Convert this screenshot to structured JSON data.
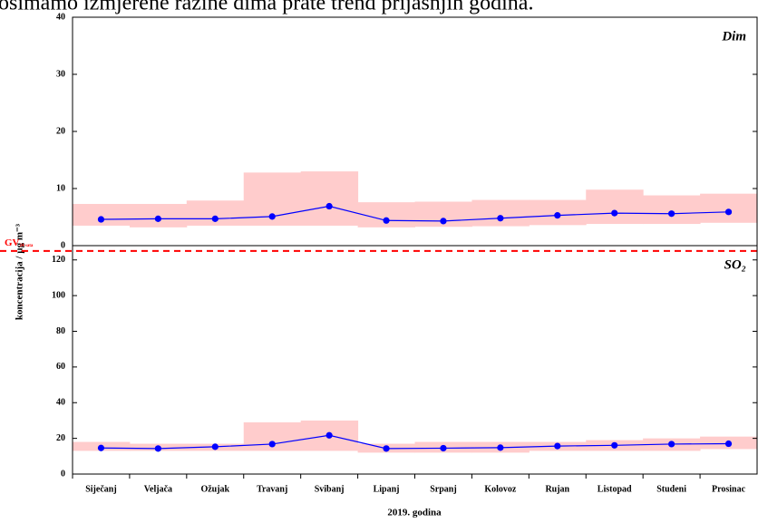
{
  "header_text": "osimamo izmjerene razine dima prate trend prijašnjih godina.",
  "y_label": "koncentracija / µg m⁻³",
  "x_label": "2019. godina",
  "chart_data": [
    {
      "type": "line",
      "label": "Dim",
      "ylim": [
        0,
        40
      ],
      "yticks": [
        0,
        10,
        20,
        30,
        40
      ],
      "series": [
        {
          "name": "Dim",
          "color": "#0000ff",
          "values": [
            4.6,
            4.7,
            4.7,
            5.1,
            6.9,
            4.4,
            4.3,
            4.8,
            5.3,
            5.7,
            5.6,
            5.9
          ],
          "range": {
            "color": "#ffcccc",
            "low": [
              3.5,
              3.2,
              3.5,
              3.5,
              3.5,
              3.2,
              3.3,
              3.4,
              3.6,
              3.8,
              3.8,
              4.0
            ],
            "high": [
              7.3,
              7.3,
              7.9,
              12.8,
              13.0,
              7.6,
              7.7,
              8.0,
              8.0,
              9.8,
              8.8,
              9.1
            ]
          }
        }
      ]
    },
    {
      "type": "line",
      "label": "SO₂",
      "categories": [
        "Siječanj",
        "Veljača",
        "Ožujak",
        "Travanj",
        "Svibanj",
        "Lipanj",
        "Srpanj",
        "Kolovoz",
        "Rujan",
        "Listopad",
        "Studeni",
        "Prosinac"
      ],
      "ylim": [
        0,
        128
      ],
      "yticks": [
        0,
        20,
        40,
        60,
        80,
        100,
        120
      ],
      "reference_line": {
        "value": 125,
        "color": "#ff0000",
        "label": "GV",
        "label_sub": "24 sata"
      },
      "series": [
        {
          "name": "SO₂",
          "color": "#0000ff",
          "values": [
            14.6,
            14.3,
            15.3,
            16.8,
            21.7,
            14.3,
            14.5,
            14.8,
            15.7,
            16.1,
            16.8,
            17.0
          ],
          "range": {
            "color": "#ffcccc",
            "low": [
              13,
              13,
              13,
              13,
              13,
              12,
              12,
              12,
              13,
              13,
              13,
              14
            ],
            "high": [
              18,
              17,
              17,
              29,
              30,
              17,
              18,
              18,
              18,
              19,
              20,
              21
            ]
          }
        }
      ]
    }
  ]
}
